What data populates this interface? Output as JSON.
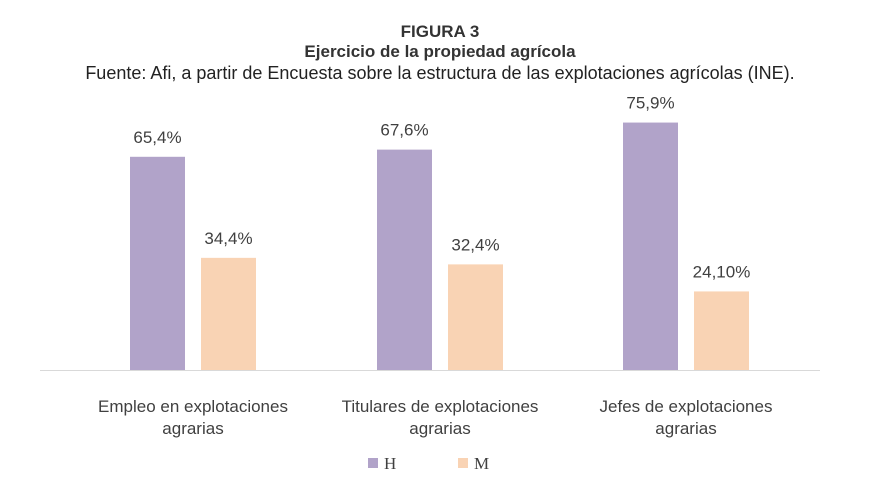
{
  "chart_data": {
    "type": "bar",
    "figure_label": "FIGURA 3",
    "title": "Ejercicio de la propiedad agrícola",
    "subtitle": "Fuente: Afi, a partir de Encuesta sobre la estructura de las explotaciones agrícolas (INE).",
    "categories": [
      [
        "Empleo en explotaciones",
        "agrarias"
      ],
      [
        "Titulares de explotaciones",
        "agrarias"
      ],
      [
        "Jefes de explotaciones",
        "agrarias"
      ]
    ],
    "series": [
      {
        "name": "H",
        "color": "#b1a3c9",
        "values": [
          65.4,
          67.6,
          75.9
        ],
        "labels": [
          "65,4%",
          "67,6%",
          "75,9%"
        ]
      },
      {
        "name": "M",
        "color": "#f9d3b4",
        "values": [
          34.4,
          32.4,
          24.1
        ],
        "labels": [
          "34,4%",
          "32,4%",
          "24,10%"
        ]
      }
    ],
    "xlabel": "",
    "ylabel": "",
    "ylim": [
      0,
      100
    ],
    "grid": false,
    "legend": "bottom"
  }
}
